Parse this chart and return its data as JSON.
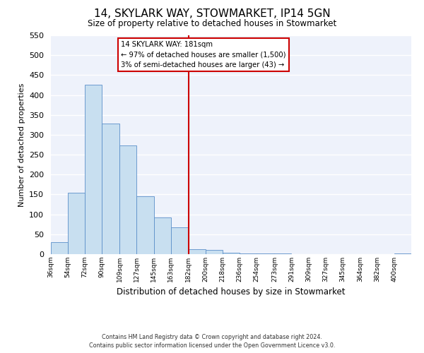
{
  "title": "14, SKYLARK WAY, STOWMARKET, IP14 5GN",
  "subtitle": "Size of property relative to detached houses in Stowmarket",
  "xlabel": "Distribution of detached houses by size in Stowmarket",
  "ylabel": "Number of detached properties",
  "bin_labels": [
    "36sqm",
    "54sqm",
    "72sqm",
    "90sqm",
    "109sqm",
    "127sqm",
    "145sqm",
    "163sqm",
    "182sqm",
    "200sqm",
    "218sqm",
    "236sqm",
    "254sqm",
    "273sqm",
    "291sqm",
    "309sqm",
    "327sqm",
    "345sqm",
    "364sqm",
    "382sqm",
    "400sqm"
  ],
  "bar_heights": [
    30,
    155,
    425,
    328,
    273,
    145,
    93,
    68,
    13,
    10,
    4,
    1,
    1,
    1,
    0,
    0,
    0,
    0,
    0,
    0,
    2
  ],
  "bar_color": "#c8dff0",
  "bar_edge_color": "#5b8fc9",
  "ylim": [
    0,
    550
  ],
  "yticks": [
    0,
    50,
    100,
    150,
    200,
    250,
    300,
    350,
    400,
    450,
    500,
    550
  ],
  "property_line_color": "#cc0000",
  "annotation_title": "14 SKYLARK WAY: 181sqm",
  "annotation_line1": "← 97% of detached houses are smaller (1,500)",
  "annotation_line2": "3% of semi-detached houses are larger (43) →",
  "footer1": "Contains HM Land Registry data © Crown copyright and database right 2024.",
  "footer2": "Contains public sector information licensed under the Open Government Licence v3.0.",
  "bg_color": "#ffffff",
  "plot_bg_color": "#eef2fb",
  "grid_color": "#ffffff",
  "bin_edges": [
    36,
    54,
    72,
    90,
    109,
    127,
    145,
    163,
    182,
    200,
    218,
    236,
    254,
    273,
    291,
    309,
    327,
    345,
    364,
    382,
    400
  ]
}
